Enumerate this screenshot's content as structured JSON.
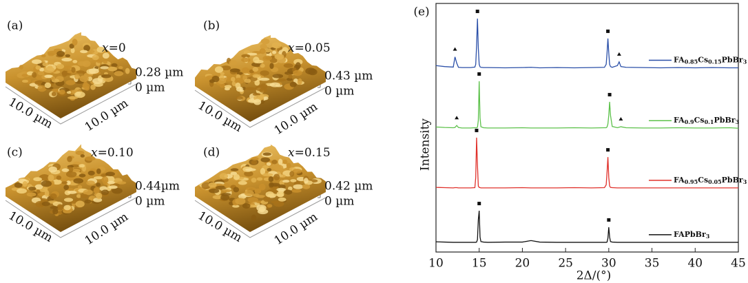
{
  "panels": [
    {
      "label": "(a)",
      "composition": "x=0",
      "z_max": "0.28 µm",
      "z_min": "0 µm",
      "x_size": "10.0 µm",
      "y_size": "10.0 µm"
    },
    {
      "label": "(b)",
      "composition": "x=0.05",
      "z_max": "0.43 µm",
      "z_min": "0 µm",
      "x_size": "10.0 µm",
      "y_size": "10.0 µm"
    },
    {
      "label": "(c)",
      "composition": "x=0.10",
      "z_max": "0.44µm",
      "z_min": "0 µm",
      "x_size": "10.0 µm",
      "y_size": "10.0 µm"
    },
    {
      "label": "(d)",
      "composition": "x=0.15",
      "z_max": "0.42 µm",
      "z_min": "0 µm",
      "x_size": "10.0 µm",
      "y_size": "10.0 µm"
    }
  ],
  "chart_data": {
    "type": "line",
    "panel_label": "(e)",
    "x_label": "2Δ/(°)",
    "y_label": "Intensity",
    "xlim": [
      10,
      45
    ],
    "xticks": [
      10,
      15,
      20,
      25,
      30,
      35,
      40,
      45
    ],
    "ylim": [
      0,
      100
    ],
    "x": [
      10,
      11,
      12,
      12.2,
      12.4,
      12.6,
      13,
      14,
      14.5,
      14.6,
      14.7,
      14.8,
      14.9,
      15.0,
      15.1,
      15.2,
      15.5,
      16,
      18,
      20,
      21,
      22,
      24,
      26,
      28,
      29.5,
      29.7,
      29.8,
      29.9,
      30.0,
      30.1,
      30.2,
      30.4,
      31,
      31.2,
      31.4,
      32,
      34,
      36,
      38,
      40,
      42,
      44,
      45
    ],
    "series": [
      {
        "name": "FA0.85Cs0.15PbBr3",
        "color": "#2a4fa8",
        "values": [
          75,
          74.6,
          74.4,
          78.5,
          76,
          74.3,
          74.2,
          74.2,
          74.4,
          75.5,
          83,
          93.9,
          82,
          75.5,
          74.5,
          74.3,
          74.2,
          74.2,
          74.1,
          74.2,
          74.3,
          74.1,
          74.2,
          74.1,
          74.2,
          74.3,
          75.5,
          80,
          85.9,
          80,
          75.5,
          74.6,
          74.3,
          75,
          76.5,
          74.6,
          74.3,
          74.2,
          74.1,
          74.2,
          74.1,
          74.2,
          74.1,
          74.1
        ],
        "markers": [
          {
            "x": 12.2,
            "shape": "triangle"
          },
          {
            "x": 14.8,
            "shape": "square"
          },
          {
            "x": 29.9,
            "shape": "square"
          },
          {
            "x": 31.2,
            "shape": "triangle"
          }
        ]
      },
      {
        "name": "FA0.9Cs0.1PbBr3",
        "color": "#5cc14a",
        "values": [
          50.3,
          50.1,
          50,
          50.1,
          50.9,
          50.1,
          49.9,
          49.9,
          50,
          50,
          50,
          50.2,
          53,
          68.7,
          54,
          50.4,
          50,
          49.9,
          49.9,
          50,
          49.9,
          49.9,
          49.9,
          50,
          49.9,
          50,
          50,
          50.3,
          51.5,
          55,
          60.4,
          55,
          50.5,
          50,
          50.2,
          50.4,
          50,
          49.9,
          49.9,
          50,
          49.9,
          49.9,
          50,
          49.8
        ],
        "markers": [
          {
            "x": 12.4,
            "shape": "triangle"
          },
          {
            "x": 15.0,
            "shape": "square"
          },
          {
            "x": 30.1,
            "shape": "square"
          },
          {
            "x": 31.4,
            "shape": "triangle"
          }
        ]
      },
      {
        "name": "FA0.95Cs0.05PbBr3",
        "color": "#e0302a",
        "values": [
          26,
          25.9,
          25.8,
          25.9,
          25.9,
          25.8,
          25.8,
          25.8,
          25.9,
          30,
          46,
          35,
          26.5,
          26,
          25.9,
          25.8,
          25.8,
          25.8,
          25.8,
          25.9,
          25.8,
          25.8,
          25.8,
          25.9,
          25.8,
          25.9,
          27,
          32,
          38.2,
          30,
          26.5,
          26,
          25.9,
          25.8,
          25.8,
          25.8,
          25.8,
          25.8,
          25.8,
          25.8,
          25.8,
          25.8,
          25.8,
          25.8
        ],
        "markers": [
          {
            "x": 14.7,
            "shape": "square"
          },
          {
            "x": 29.9,
            "shape": "square"
          }
        ]
      },
      {
        "name": "FAPbBr3",
        "color": "#111111",
        "values": [
          4.1,
          4,
          3.9,
          3.9,
          3.9,
          3.9,
          3.9,
          3.9,
          3.9,
          3.9,
          4,
          5,
          13,
          16.6,
          6,
          4.2,
          4,
          3.9,
          4,
          4,
          4.6,
          4,
          3.9,
          3.9,
          3.9,
          3.9,
          3.9,
          4,
          5.5,
          10,
          6,
          4.2,
          4,
          3.9,
          3.9,
          3.9,
          3.9,
          3.9,
          3.9,
          3.9,
          3.9,
          3.9,
          3.9,
          3.9
        ],
        "markers": [
          {
            "x": 15.0,
            "shape": "square"
          },
          {
            "x": 30.0,
            "shape": "square"
          }
        ]
      }
    ]
  }
}
